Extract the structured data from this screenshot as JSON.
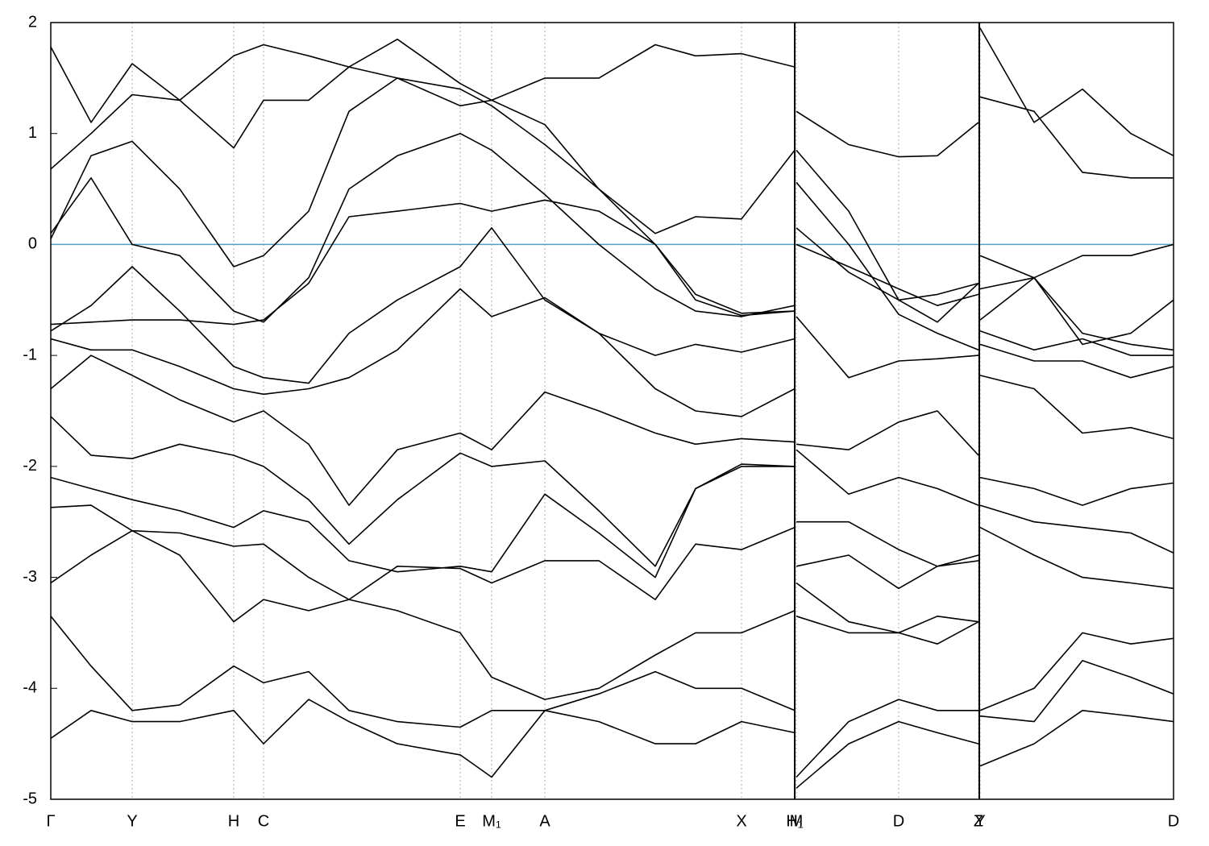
{
  "chart_data": {
    "type": "line",
    "xlim": [
      0,
      13.93
    ],
    "ylim": [
      -5,
      2
    ],
    "yticks": [
      -5,
      -4,
      -3,
      -2,
      -1,
      0,
      1,
      2
    ],
    "xticks": [
      {
        "value": 0,
        "label": "Γ"
      },
      {
        "value": 1.01,
        "label": "Y"
      },
      {
        "value": 2.27,
        "label": "H"
      },
      {
        "value": 2.64,
        "label": "C"
      },
      {
        "value": 5.08,
        "label": "E"
      },
      {
        "value": 5.47,
        "label": "M₁"
      },
      {
        "value": 6.13,
        "label": "A"
      },
      {
        "value": 8.57,
        "label": "X"
      },
      {
        "value": 9.23,
        "label": "H₁"
      },
      {
        "value": 9.25,
        "label": "M"
      },
      {
        "value": 10.52,
        "label": "D"
      },
      {
        "value": 11.51,
        "label": "Z"
      },
      {
        "value": 11.53,
        "label": "Y"
      },
      {
        "value": 13.93,
        "label": "D"
      }
    ],
    "xgrid": true,
    "grid_color": "#aaaaaa",
    "reference_line": {
      "value": 0,
      "color": "#4fa3c4"
    },
    "x": [
      0,
      0.5,
      1.01,
      1.6,
      2.27,
      2.64,
      3.2,
      3.7,
      4.3,
      5.08,
      5.47,
      6.13,
      6.8,
      7.5,
      8.0,
      8.57,
      9.23,
      9.24,
      9.25,
      9.9,
      10.52,
      11.0,
      11.51,
      11.52,
      11.53,
      12.2,
      12.8,
      13.4,
      13.93
    ],
    "series": [
      {
        "color": "#000000",
        "values": [
          0.1,
          0.6,
          0.0,
          -0.1,
          -0.6,
          -0.7,
          -0.3,
          0.5,
          0.8,
          1.0,
          0.85,
          0.45,
          0.0,
          -0.4,
          -0.6,
          -0.65,
          -0.55,
          null,
          0.15,
          -0.25,
          -0.5,
          -0.45,
          -0.35,
          null,
          -0.1,
          -0.3,
          -0.1,
          -0.1,
          0.0
        ]
      },
      {
        "color": "#000000",
        "values": [
          0.05,
          0.8,
          0.93,
          0.5,
          -0.2,
          -0.1,
          0.3,
          1.2,
          1.5,
          1.4,
          1.25,
          0.9,
          0.5,
          0.0,
          -0.45,
          -0.62,
          -0.6,
          null,
          0.0,
          -0.2,
          -0.4,
          -0.55,
          -0.45,
          null,
          -0.4,
          -0.3,
          -0.9,
          -0.8,
          -0.5
        ]
      },
      {
        "color": "#000000",
        "values": [
          0.68,
          1.0,
          1.35,
          1.3,
          0.87,
          1.3,
          1.3,
          1.6,
          1.5,
          1.25,
          1.3,
          1.08,
          0.5,
          0.1,
          0.25,
          0.23,
          0.85,
          null,
          0.85,
          0.3,
          -0.5,
          -0.7,
          -0.35,
          null,
          1.33,
          1.2,
          0.65,
          0.6,
          0.6
        ]
      },
      {
        "color": "#000000",
        "values": [
          1.78,
          1.1,
          1.63,
          1.3,
          1.7,
          1.8,
          1.7,
          1.6,
          1.85,
          1.45,
          1.3,
          1.5,
          1.5,
          1.8,
          1.7,
          1.72,
          1.6,
          null,
          1.2,
          0.9,
          0.79,
          0.8,
          1.1,
          null,
          1.95,
          1.1,
          1.4,
          1.0,
          0.8
        ]
      },
      {
        "color": "#000000",
        "values": [
          -0.72,
          -0.7,
          -0.68,
          -0.68,
          -0.72,
          -0.68,
          -0.35,
          0.25,
          0.3,
          0.37,
          0.3,
          0.4,
          0.3,
          0.0,
          -0.5,
          -0.64,
          -0.6,
          null,
          0.56,
          0.0,
          -0.63,
          -0.8,
          -0.95,
          null,
          -0.68,
          -0.3,
          -0.8,
          -0.9,
          -0.95
        ]
      },
      {
        "color": "#000000",
        "values": [
          -0.78,
          -0.55,
          -0.2,
          -0.6,
          -1.1,
          -1.2,
          -1.25,
          -0.8,
          -0.5,
          -0.2,
          0.15,
          -0.5,
          -0.8,
          -1.0,
          -0.9,
          -0.97,
          -0.85,
          null,
          -0.65,
          -1.2,
          -1.05,
          -1.03,
          -1.0,
          null,
          -0.78,
          -0.95,
          -0.85,
          -1.0,
          -1.0
        ]
      },
      {
        "color": "#000000",
        "values": [
          -0.85,
          -0.95,
          -0.95,
          -1.1,
          -1.3,
          -1.35,
          -1.3,
          -1.2,
          -0.95,
          -0.4,
          -0.65,
          -0.48,
          -0.8,
          -1.3,
          -1.5,
          -1.55,
          -1.3,
          null,
          -1.8,
          -1.85,
          -1.6,
          -1.5,
          -1.9,
          null,
          -0.9,
          -1.05,
          -1.05,
          -1.2,
          -1.1
        ]
      },
      {
        "color": "#000000",
        "values": [
          -1.3,
          -1.0,
          -1.18,
          -1.4,
          -1.6,
          -1.5,
          -1.8,
          -2.35,
          -1.85,
          -1.7,
          -1.85,
          -1.33,
          -1.5,
          -1.7,
          -1.8,
          -1.75,
          -1.78,
          null,
          -1.85,
          -2.25,
          -2.1,
          -2.2,
          -2.35,
          null,
          -1.18,
          -1.3,
          -1.7,
          -1.65,
          -1.75
        ]
      },
      {
        "color": "#000000",
        "values": [
          -1.55,
          -1.9,
          -1.93,
          -1.8,
          -1.9,
          -2.0,
          -2.3,
          -2.7,
          -2.3,
          -1.88,
          -2.0,
          -1.95,
          -2.4,
          -2.9,
          -2.2,
          -1.98,
          -2.0,
          null,
          -2.5,
          -2.5,
          -2.75,
          -2.9,
          -2.85,
          null,
          -2.1,
          -2.2,
          -2.35,
          -2.2,
          -2.15
        ]
      },
      {
        "color": "#000000",
        "values": [
          -2.1,
          -2.2,
          -2.3,
          -2.4,
          -2.55,
          -2.4,
          -2.5,
          -2.85,
          -2.95,
          -2.9,
          -2.95,
          -2.25,
          -2.6,
          -3.0,
          -2.2,
          -2.0,
          -2.0,
          null,
          -2.9,
          -2.8,
          -3.1,
          -2.9,
          -2.8,
          null,
          -2.35,
          -2.5,
          -2.55,
          -2.6,
          -2.78
        ]
      },
      {
        "color": "#000000",
        "values": [
          -2.37,
          -2.35,
          -2.58,
          -2.6,
          -2.72,
          -2.7,
          -3.0,
          -3.2,
          -2.9,
          -2.92,
          -3.05,
          -2.85,
          -2.85,
          -3.2,
          -2.7,
          -2.75,
          -2.55,
          null,
          -3.35,
          -3.5,
          -3.5,
          -3.6,
          -3.4,
          null,
          -2.55,
          -2.8,
          -3.0,
          -3.05,
          -3.1
        ]
      },
      {
        "color": "#000000",
        "values": [
          -3.05,
          -2.8,
          -2.58,
          -2.8,
          -3.4,
          -3.2,
          -3.3,
          -3.2,
          -3.3,
          -3.5,
          -3.9,
          -4.1,
          -4.0,
          -3.7,
          -3.5,
          -3.5,
          -3.3,
          null,
          -3.05,
          -3.4,
          -3.5,
          -3.35,
          -3.4,
          null,
          -4.2,
          -4.0,
          -3.5,
          -3.6,
          -3.55
        ]
      },
      {
        "color": "#000000",
        "values": [
          -3.35,
          -3.8,
          -4.2,
          -4.15,
          -3.8,
          -3.95,
          -3.85,
          -4.2,
          -4.3,
          -4.35,
          -4.2,
          -4.2,
          -4.05,
          -3.85,
          -4.0,
          -4.0,
          -4.2,
          null,
          -4.8,
          -4.3,
          -4.1,
          -4.2,
          -4.2,
          null,
          -4.25,
          -4.3,
          -3.75,
          -3.9,
          -4.05
        ]
      },
      {
        "color": "#000000",
        "values": [
          -4.45,
          -4.2,
          -4.3,
          -4.3,
          -4.2,
          -4.5,
          -4.1,
          -4.3,
          -4.5,
          -4.6,
          -4.8,
          -4.2,
          -4.3,
          -4.5,
          -4.5,
          -4.3,
          -4.4,
          null,
          -4.9,
          -4.5,
          -4.3,
          -4.4,
          -4.5,
          null,
          -4.7,
          -4.5,
          -4.2,
          -4.25,
          -4.3
        ]
      }
    ]
  }
}
